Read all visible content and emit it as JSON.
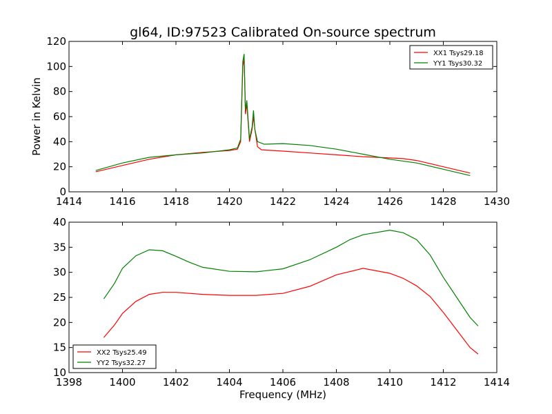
{
  "chart_data": [
    {
      "type": "line",
      "title": "gl64, ID:97523 Calibrated On-source spectrum",
      "xlabel": "",
      "ylabel": "Power in Kelvin",
      "xlim": [
        1414,
        1430
      ],
      "ylim": [
        0,
        120
      ],
      "xticks": [
        1414,
        1416,
        1418,
        1420,
        1422,
        1424,
        1426,
        1428,
        1430
      ],
      "yticks": [
        0,
        20,
        40,
        60,
        80,
        100,
        120
      ],
      "legend_position": "top-right",
      "grid": false,
      "series": [
        {
          "name": "XX1 Tsys29.18",
          "color": "#ff0000",
          "points": [
            [
              1415,
              16
            ],
            [
              1416,
              21
            ],
            [
              1417,
              26
            ],
            [
              1418,
              29.5
            ],
            [
              1419,
              31.5
            ],
            [
              1420,
              33
            ],
            [
              1420.3,
              34
            ],
            [
              1420.42,
              40
            ],
            [
              1420.5,
              100
            ],
            [
              1420.55,
              106
            ],
            [
              1420.6,
              62
            ],
            [
              1420.65,
              70
            ],
            [
              1420.75,
              40
            ],
            [
              1420.85,
              50
            ],
            [
              1420.9,
              60
            ],
            [
              1420.95,
              50
            ],
            [
              1421.05,
              36
            ],
            [
              1421.2,
              33.5
            ],
            [
              1422,
              32.5
            ],
            [
              1423,
              31
            ],
            [
              1424,
              29.5
            ],
            [
              1425,
              28
            ],
            [
              1426,
              27
            ],
            [
              1426.5,
              26.5
            ],
            [
              1427,
              25
            ],
            [
              1428,
              20
            ],
            [
              1429,
              15
            ]
          ]
        },
        {
          "name": "YY1 Tsys30.32",
          "color": "#008000",
          "points": [
            [
              1415,
              17
            ],
            [
              1416,
              23
            ],
            [
              1417,
              27.5
            ],
            [
              1418,
              29.5
            ],
            [
              1419,
              31
            ],
            [
              1420,
              33.5
            ],
            [
              1420.3,
              35
            ],
            [
              1420.42,
              42
            ],
            [
              1420.5,
              104
            ],
            [
              1420.55,
              110
            ],
            [
              1420.6,
              65
            ],
            [
              1420.65,
              73
            ],
            [
              1420.75,
              42
            ],
            [
              1420.85,
              52
            ],
            [
              1420.9,
              65
            ],
            [
              1420.95,
              50
            ],
            [
              1421.05,
              40
            ],
            [
              1421.3,
              38
            ],
            [
              1422,
              38.5
            ],
            [
              1423,
              37
            ],
            [
              1424,
              34
            ],
            [
              1425,
              30
            ],
            [
              1426,
              26
            ],
            [
              1427,
              23
            ],
            [
              1428,
              18
            ],
            [
              1429,
              13
            ]
          ]
        }
      ]
    },
    {
      "type": "line",
      "title": "",
      "xlabel": "Frequency (MHz)",
      "ylabel": "",
      "xlim": [
        1398,
        1414
      ],
      "ylim": [
        10,
        40
      ],
      "xticks": [
        1398,
        1400,
        1402,
        1404,
        1406,
        1408,
        1410,
        1412,
        1414
      ],
      "yticks": [
        10,
        15,
        20,
        25,
        30,
        35,
        40
      ],
      "legend_position": "bottom-left",
      "grid": false,
      "series": [
        {
          "name": "XX2 Tsys25.49",
          "color": "#ff0000",
          "points": [
            [
              1399.3,
              17
            ],
            [
              1399.7,
              19.5
            ],
            [
              1400,
              21.8
            ],
            [
              1400.5,
              24.2
            ],
            [
              1401,
              25.6
            ],
            [
              1401.5,
              26
            ],
            [
              1402,
              26
            ],
            [
              1403,
              25.6
            ],
            [
              1404,
              25.4
            ],
            [
              1405,
              25.4
            ],
            [
              1406,
              25.8
            ],
            [
              1407,
              27.2
            ],
            [
              1408,
              29.5
            ],
            [
              1409,
              30.8
            ],
            [
              1410,
              29.8
            ],
            [
              1410.5,
              28.8
            ],
            [
              1411,
              27.3
            ],
            [
              1411.5,
              25.2
            ],
            [
              1412,
              22
            ],
            [
              1412.5,
              18.5
            ],
            [
              1413,
              15
            ],
            [
              1413.3,
              13.7
            ]
          ]
        },
        {
          "name": "YY2 Tsys32.27",
          "color": "#008000",
          "points": [
            [
              1399.3,
              24.7
            ],
            [
              1399.7,
              27.8
            ],
            [
              1400,
              30.8
            ],
            [
              1400.5,
              33.3
            ],
            [
              1401,
              34.5
            ],
            [
              1401.5,
              34.3
            ],
            [
              1402,
              33.2
            ],
            [
              1402.5,
              32
            ],
            [
              1403,
              31
            ],
            [
              1404,
              30.2
            ],
            [
              1405,
              30.1
            ],
            [
              1406,
              30.7
            ],
            [
              1407,
              32.5
            ],
            [
              1408,
              35
            ],
            [
              1408.5,
              36.5
            ],
            [
              1409,
              37.5
            ],
            [
              1410,
              38.4
            ],
            [
              1410.5,
              37.9
            ],
            [
              1411,
              36.5
            ],
            [
              1411.5,
              33.5
            ],
            [
              1412,
              29
            ],
            [
              1412.5,
              25
            ],
            [
              1413,
              21
            ],
            [
              1413.3,
              19.3
            ]
          ]
        }
      ]
    }
  ]
}
